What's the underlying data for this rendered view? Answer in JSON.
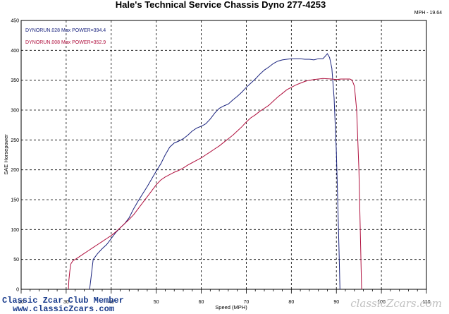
{
  "chart_data": {
    "type": "line",
    "title": "Hale's Technical Service Chassis Dyno 277-4253",
    "corner_label": "MPH - 19.64",
    "xlabel": "Speed (MPH)",
    "ylabel": "SAE Horsepower",
    "xlim": [
      20,
      110
    ],
    "ylim": [
      0,
      450
    ],
    "x_ticks": [
      20,
      30,
      40,
      50,
      60,
      70,
      80,
      90,
      100,
      110
    ],
    "y_ticks": [
      0,
      50,
      100,
      150,
      200,
      250,
      300,
      350,
      400,
      450
    ],
    "grid": true,
    "legend_position": "top-left",
    "series": [
      {
        "name": "DYNORUN.028",
        "legend_label": "DYNORUN.028 Max POWER=394.4",
        "color": "#1a237e",
        "points": [
          [
            35.2,
            0
          ],
          [
            35.4,
            12
          ],
          [
            35.6,
            25
          ],
          [
            35.8,
            37
          ],
          [
            36.0,
            50
          ],
          [
            37.0,
            60
          ],
          [
            38.0,
            68
          ],
          [
            39.0,
            75
          ],
          [
            40.0,
            85
          ],
          [
            41.0,
            95
          ],
          [
            42.0,
            103
          ],
          [
            43.0,
            110
          ],
          [
            44.0,
            120
          ],
          [
            45.0,
            135
          ],
          [
            46.0,
            148
          ],
          [
            47.0,
            160
          ],
          [
            48.0,
            172
          ],
          [
            49.0,
            185
          ],
          [
            50.0,
            198
          ],
          [
            51.0,
            210
          ],
          [
            52.0,
            225
          ],
          [
            53.0,
            238
          ],
          [
            54.0,
            245
          ],
          [
            55.0,
            248
          ],
          [
            56.0,
            252
          ],
          [
            57.0,
            258
          ],
          [
            58.0,
            265
          ],
          [
            59.0,
            270
          ],
          [
            60.0,
            273
          ],
          [
            61.0,
            277
          ],
          [
            62.0,
            285
          ],
          [
            63.0,
            295
          ],
          [
            64.0,
            303
          ],
          [
            65.0,
            307
          ],
          [
            66.0,
            310
          ],
          [
            67.0,
            317
          ],
          [
            68.0,
            323
          ],
          [
            69.0,
            330
          ],
          [
            70.0,
            338
          ],
          [
            71.0,
            345
          ],
          [
            72.0,
            352
          ],
          [
            73.0,
            360
          ],
          [
            74.0,
            367
          ],
          [
            75.0,
            372
          ],
          [
            76.0,
            378
          ],
          [
            77.0,
            382
          ],
          [
            78.0,
            384
          ],
          [
            79.0,
            385
          ],
          [
            80.0,
            386
          ],
          [
            81.0,
            386
          ],
          [
            82.0,
            386
          ],
          [
            83.0,
            385
          ],
          [
            84.0,
            385
          ],
          [
            85.0,
            384
          ],
          [
            86.0,
            386
          ],
          [
            87.0,
            386
          ],
          [
            87.5,
            390
          ],
          [
            88.0,
            394.4
          ],
          [
            88.5,
            388
          ],
          [
            89.0,
            370
          ],
          [
            89.5,
            320
          ],
          [
            90.0,
            230
          ],
          [
            90.3,
            150
          ],
          [
            90.6,
            60
          ],
          [
            90.8,
            0
          ]
        ]
      },
      {
        "name": "DYNORUN.008",
        "legend_label": "DYNORUN.008 Max POWER=352.9",
        "color": "#b0103e",
        "points": [
          [
            30.5,
            0
          ],
          [
            30.6,
            15
          ],
          [
            30.8,
            30
          ],
          [
            31.0,
            42
          ],
          [
            31.5,
            48
          ],
          [
            32.0,
            50
          ],
          [
            33.0,
            55
          ],
          [
            34.0,
            60
          ],
          [
            35.0,
            65
          ],
          [
            36.0,
            70
          ],
          [
            37.0,
            75
          ],
          [
            38.0,
            80
          ],
          [
            39.0,
            85
          ],
          [
            40.0,
            90
          ],
          [
            41.0,
            96
          ],
          [
            42.0,
            103
          ],
          [
            43.0,
            110
          ],
          [
            44.0,
            117
          ],
          [
            45.0,
            125
          ],
          [
            46.0,
            135
          ],
          [
            47.0,
            145
          ],
          [
            48.0,
            155
          ],
          [
            49.0,
            165
          ],
          [
            50.0,
            175
          ],
          [
            51.0,
            183
          ],
          [
            52.0,
            188
          ],
          [
            53.0,
            192
          ],
          [
            54.0,
            196
          ],
          [
            55.0,
            199
          ],
          [
            56.0,
            203
          ],
          [
            57.0,
            208
          ],
          [
            58.0,
            212
          ],
          [
            59.0,
            216
          ],
          [
            60.0,
            220
          ],
          [
            61.0,
            225
          ],
          [
            62.0,
            230
          ],
          [
            63.0,
            235
          ],
          [
            64.0,
            240
          ],
          [
            65.0,
            246
          ],
          [
            66.0,
            252
          ],
          [
            67.0,
            258
          ],
          [
            68.0,
            265
          ],
          [
            69.0,
            272
          ],
          [
            70.0,
            280
          ],
          [
            71.0,
            287
          ],
          [
            72.0,
            292
          ],
          [
            73.0,
            298
          ],
          [
            74.0,
            303
          ],
          [
            75.0,
            308
          ],
          [
            76.0,
            315
          ],
          [
            77.0,
            322
          ],
          [
            78.0,
            328
          ],
          [
            79.0,
            334
          ],
          [
            80.0,
            338
          ],
          [
            81.0,
            342
          ],
          [
            82.0,
            345
          ],
          [
            83.0,
            348
          ],
          [
            84.0,
            350
          ],
          [
            85.0,
            351
          ],
          [
            86.0,
            352
          ],
          [
            87.0,
            352.9
          ],
          [
            88.0,
            352.5
          ],
          [
            89.0,
            352
          ],
          [
            90.0,
            351
          ],
          [
            91.0,
            352
          ],
          [
            92.0,
            352
          ],
          [
            93.0,
            352
          ],
          [
            93.5,
            350
          ],
          [
            94.0,
            340
          ],
          [
            94.5,
            300
          ],
          [
            95.0,
            200
          ],
          [
            95.3,
            100
          ],
          [
            95.6,
            0
          ]
        ]
      }
    ]
  },
  "footer": {
    "club_line": "Classic Zcar Club Member",
    "website": "www.classicZcars.com",
    "watermark": "classicZcars.com"
  }
}
